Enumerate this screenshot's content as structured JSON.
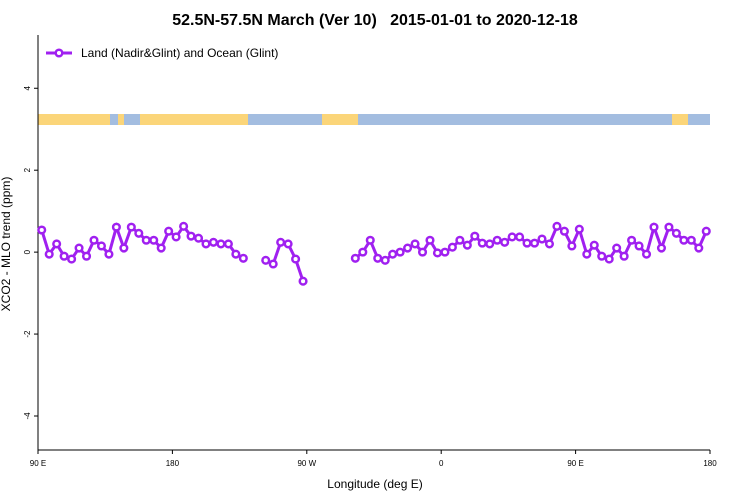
{
  "chart_data": {
    "type": "line",
    "title": "52.5N-57.5N March (Ver 10)   2015-01-01 to 2020-12-18",
    "x_label": "Longitude (deg E)",
    "y_label": "XCO2 - MLO trend (ppm)",
    "x": [
      92.5,
      97.5,
      102.5,
      107.5,
      112.5,
      117.5,
      122.5,
      127.5,
      132.5,
      137.5,
      142.5,
      147.5,
      152.5,
      157.5,
      162.5,
      167.5,
      172.5,
      177.5,
      182.5,
      187.5,
      192.5,
      197.5,
      202.5,
      207.5,
      212.5,
      217.5,
      222.5,
      227.5,
      232.5,
      237.5,
      242.5,
      247.5,
      252.5,
      257.5,
      262.5,
      267.5,
      272.5,
      277.5,
      282.5,
      287.5,
      292.5,
      297.5,
      302.5,
      307.5,
      312.5,
      317.5,
      322.5,
      327.5,
      332.5,
      337.5,
      342.5,
      347.5,
      352.5,
      357.5,
      362.5,
      367.5,
      372.5,
      377.5,
      382.5,
      387.5,
      392.5,
      397.5,
      402.5,
      407.5,
      412.5,
      417.5,
      422.5,
      427.5,
      432.5,
      437.5,
      442.5,
      447.5,
      452.5,
      457.5,
      462.5,
      467.5,
      472.5,
      477.5,
      482.5,
      487.5,
      492.5,
      497.5,
      502.5,
      507.5,
      512.5,
      517.5,
      522.5,
      527.5,
      532.5,
      537.5
    ],
    "series": [
      {
        "name": "Land (Nadir&Glint) and Ocean (Glint)",
        "color": "#a020f0",
        "values": [
          0.54,
          -0.05,
          0.2,
          -0.1,
          -0.17,
          0.1,
          -0.1,
          0.29,
          0.15,
          -0.05,
          0.61,
          0.1,
          0.61,
          0.46,
          0.29,
          0.29,
          0.1,
          0.51,
          0.37,
          0.63,
          0.39,
          0.34,
          0.2,
          0.24,
          0.2,
          0.2,
          -0.05,
          -0.15,
          null,
          null,
          -0.2,
          -0.29,
          0.24,
          0.2,
          -0.17,
          -0.71,
          null,
          null,
          null,
          null,
          null,
          null,
          -0.15,
          0,
          0.29,
          -0.15,
          -0.2,
          -0.05,
          0,
          0.1,
          0.2,
          0,
          0.29,
          -0.02,
          0,
          0.12,
          0.29,
          0.17,
          0.39,
          0.22,
          0.2,
          0.29,
          0.24,
          0.37,
          0.37,
          0.22,
          0.22,
          0.32,
          0.2,
          0.63,
          0.51,
          0.15,
          0.56,
          -0.05,
          0.17,
          -0.1,
          -0.17,
          0.1,
          -0.1,
          0.29,
          0.15,
          -0.05,
          0.61,
          0.1,
          0.61,
          0.46,
          0.29,
          0.29,
          0.1,
          0.51
        ]
      }
    ],
    "xlim": [
      90,
      540
    ],
    "xticks": [
      {
        "value": 90,
        "label": "90 E"
      },
      180,
      {
        "value": 270,
        "label": "90 W"
      },
      {
        "value": 360,
        "label": "0"
      },
      {
        "value": 450,
        "label": "90 E"
      },
      {
        "value": 540,
        "label": "180"
      }
    ],
    "ylim": [
      -4.83,
      5.3
    ],
    "yticks": [
      -4,
      -2,
      0,
      2,
      4
    ],
    "legend": "top-left"
  }
}
